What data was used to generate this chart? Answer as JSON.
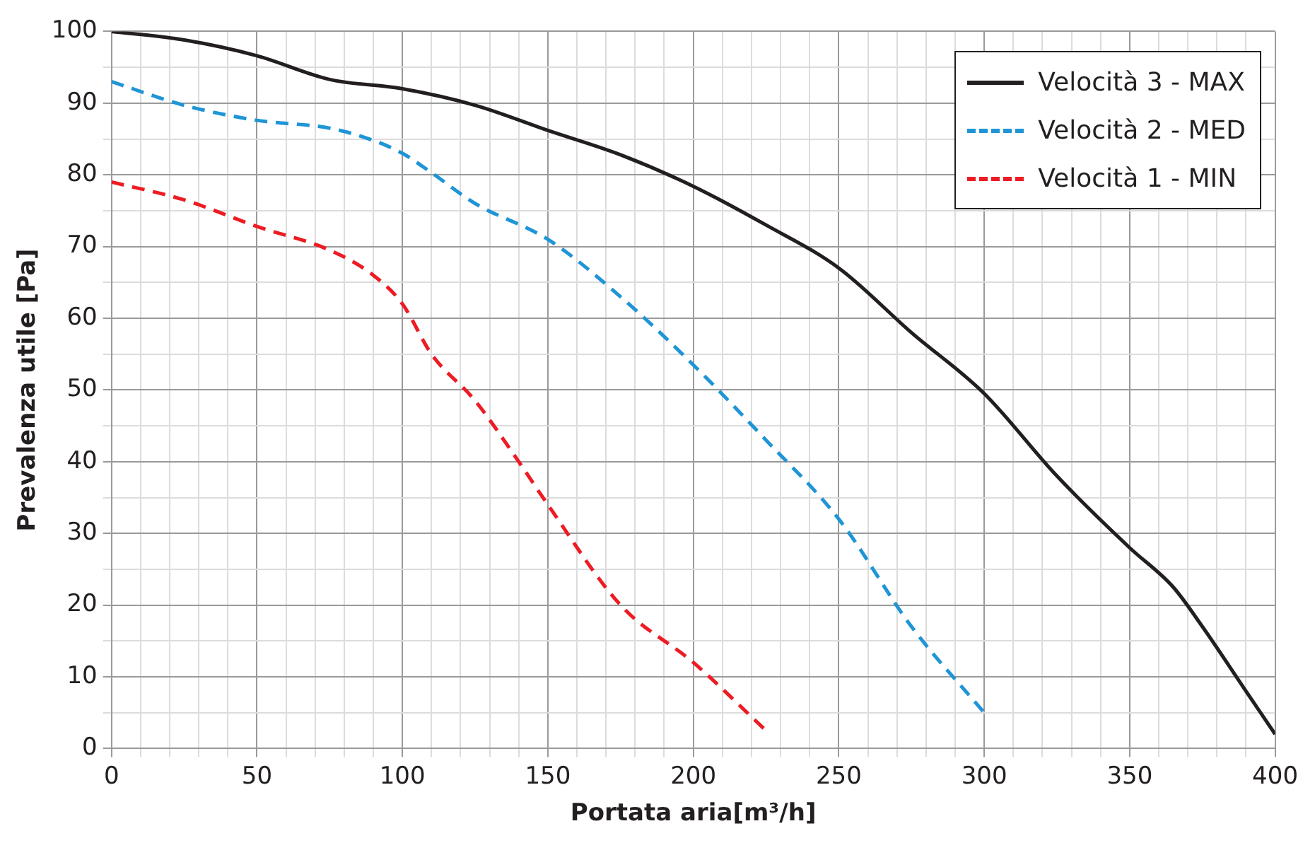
{
  "chart_data": {
    "type": "line",
    "xlabel": "Portata aria[m³/h]",
    "ylabel": "Prevalenza utile [Pa]",
    "xlim": [
      0,
      400
    ],
    "ylim": [
      0,
      100
    ],
    "xticks": [
      0,
      {
        "value": 10,
        "label": null
      },
      {
        "value": 20,
        "label": null
      },
      {
        "value": 30,
        "label": null
      },
      {
        "value": 40,
        "label": null
      },
      50,
      {
        "value": 60,
        "label": null
      },
      {
        "value": 70,
        "label": null
      },
      {
        "value": 80,
        "label": null
      },
      {
        "value": 90,
        "label": null
      },
      100,
      {
        "value": 110,
        "label": null
      },
      {
        "value": 120,
        "label": null
      },
      {
        "value": 130,
        "label": null
      },
      {
        "value": 140,
        "label": null
      },
      150,
      {
        "value": 160,
        "label": null
      },
      {
        "value": 170,
        "label": null
      },
      {
        "value": 180,
        "label": null
      },
      {
        "value": 190,
        "label": null
      },
      200,
      {
        "value": 210,
        "label": null
      },
      {
        "value": 220,
        "label": null
      },
      {
        "value": 230,
        "label": null
      },
      {
        "value": 240,
        "label": null
      },
      250,
      {
        "value": 260,
        "label": null
      },
      {
        "value": 270,
        "label": null
      },
      {
        "value": 280,
        "label": null
      },
      {
        "value": 290,
        "label": null
      },
      300,
      {
        "value": 310,
        "label": null
      },
      {
        "value": 320,
        "label": null
      },
      {
        "value": 330,
        "label": null
      },
      {
        "value": 340,
        "label": null
      },
      350,
      {
        "value": 360,
        "label": null
      },
      {
        "value": 370,
        "label": null
      },
      {
        "value": 380,
        "label": null
      },
      {
        "value": 390,
        "label": null
      },
      400
    ],
    "yticks": [
      0,
      {
        "value": 5,
        "label": null
      },
      10,
      {
        "value": 15,
        "label": null
      },
      20,
      {
        "value": 25,
        "label": null
      },
      30,
      {
        "value": 35,
        "label": null
      },
      40,
      {
        "value": 45,
        "label": null
      },
      50,
      {
        "value": 55,
        "label": null
      },
      60,
      {
        "value": 65,
        "label": null
      },
      70,
      {
        "value": 75,
        "label": null
      },
      80,
      {
        "value": 85,
        "label": null
      },
      90,
      {
        "value": 95,
        "label": null
      },
      100
    ],
    "grid": true,
    "legend": "top right",
    "marker": "none",
    "series": [
      {
        "name": "Velocità 3 - MAX",
        "color": "#231f20",
        "line_style": "solid",
        "x": [
          0,
          25,
          50,
          75,
          100,
          125,
          150,
          175,
          200,
          225,
          250,
          275,
          300,
          325,
          350,
          365,
          375,
          390,
          400
        ],
        "values": [
          100,
          98.8,
          96.6,
          93.3,
          92,
          89.7,
          86.2,
          82.8,
          78.4,
          73,
          67,
          58,
          49.5,
          38,
          28,
          22.5,
          17,
          8,
          2
        ]
      },
      {
        "name": "Velocità 2 - MED",
        "color": "#1f95d6",
        "line_style": "dashed",
        "x": [
          0,
          25,
          50,
          75,
          90,
          100,
          110,
          125,
          150,
          175,
          200,
          225,
          250,
          275,
          300
        ],
        "values": [
          93,
          89.7,
          87.6,
          86.5,
          84.8,
          83,
          80.3,
          76,
          71,
          63,
          53.5,
          43,
          32,
          17,
          5
        ]
      },
      {
        "name": "Velocità 1 - MIN",
        "color": "#ed1c24",
        "line_style": "dashed",
        "x": [
          0,
          25,
          50,
          75,
          90,
          100,
          110,
          125,
          140,
          150,
          175,
          200,
          225
        ],
        "values": [
          79,
          76.5,
          72.8,
          69.5,
          66,
          62,
          55,
          48.5,
          40,
          34,
          20,
          12,
          2.5
        ]
      }
    ]
  }
}
